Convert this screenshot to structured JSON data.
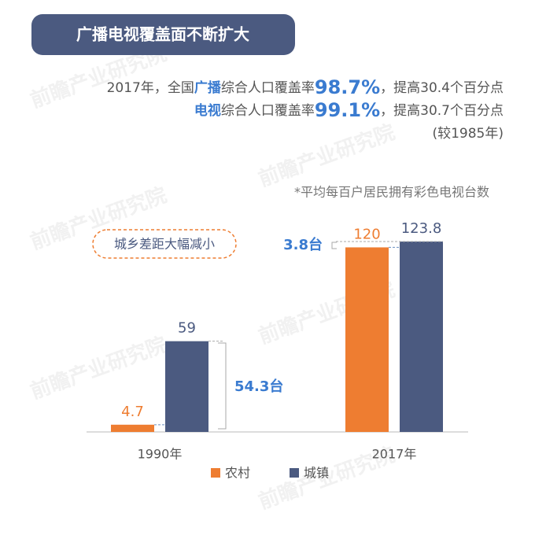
{
  "chart_data": {
    "type": "bar",
    "title": "广播电视覆盖面不断扩大",
    "summary": [
      [
        "2017年，全国",
        "广播",
        "综合人口覆盖率",
        "98.7%",
        "，提高30.4个百分点"
      ],
      [
        "电视",
        "综合人口覆盖率",
        "99.1%",
        "，提高30.7个百分点"
      ],
      [
        "(较1985年)"
      ]
    ],
    "note": "*平均每百户居民拥有彩色电视台数",
    "annotations": {
      "callout": "城乡差距大幅减小",
      "gap_1990": "54.3台",
      "gap_2017": "3.8台"
    },
    "watermark": "前瞻产业研究院",
    "categories": [
      "1990年",
      "2017年"
    ],
    "series": [
      {
        "name": "农村",
        "color": "#ee7d31",
        "values": [
          4.7,
          120
        ]
      },
      {
        "name": "城镇",
        "color": "#4b5a80",
        "values": [
          59,
          123.8
        ]
      }
    ]
  }
}
